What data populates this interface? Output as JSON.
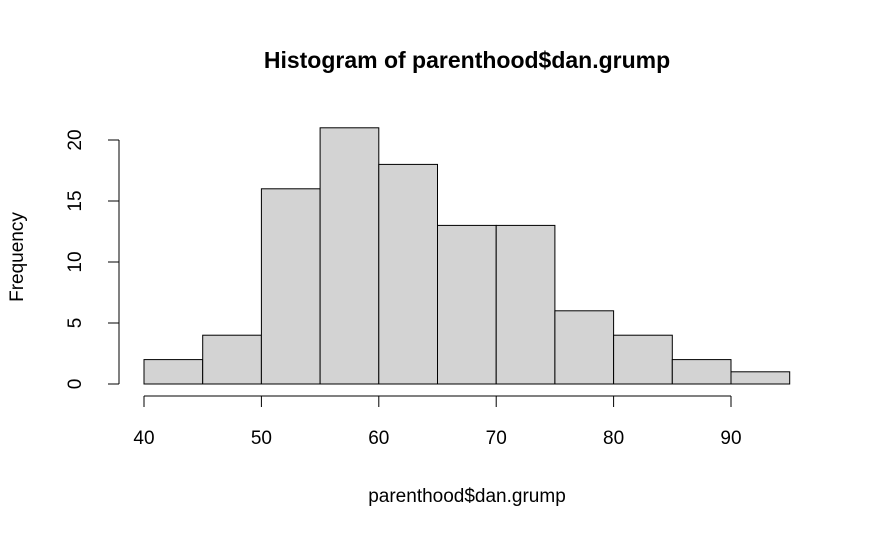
{
  "chart_data": {
    "type": "histogram",
    "title": "Histogram of parenthood$dan.grump",
    "x_label": "parenthood$dan.grump",
    "y_label": "Frequency",
    "bins": [
      40,
      45,
      50,
      55,
      60,
      65,
      70,
      75,
      80,
      85,
      90,
      95
    ],
    "values": [
      2,
      4,
      16,
      21,
      18,
      13,
      13,
      6,
      4,
      2,
      1
    ],
    "color": "#d3d3d3",
    "xlim": [
      40,
      95
    ],
    "xticks": [
      40,
      50,
      60,
      70,
      80,
      90
    ],
    "ylim": [
      0,
      21
    ],
    "yticks": [
      0,
      5,
      10,
      15,
      20
    ]
  }
}
